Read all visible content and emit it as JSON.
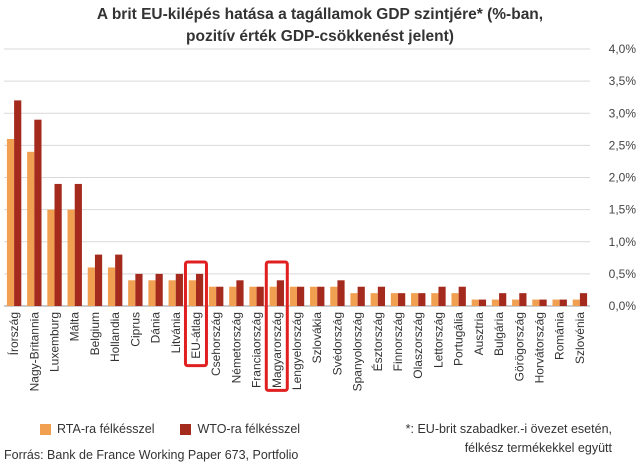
{
  "chart_data": {
    "type": "bar",
    "title_line1": "A brit EU-kilépés hatása a tagállamok GDP szintjére* (%-ban,",
    "title_line2": "pozitív érték GDP-csökkenést jelent)",
    "categories": [
      "Írország",
      "Nagy-Britannia",
      "Luxemburg",
      "Málta",
      "Belgium",
      "Hollandia",
      "Ciprus",
      "Dánia",
      "Litvánia",
      "EU-átlag",
      "Csehország",
      "Németország",
      "Franciaország",
      "Magyarország",
      "Lengyelország",
      "Szlovákia",
      "Svédország",
      "Spanyolország",
      "Észtország",
      "Finnország",
      "Olaszország",
      "Lettország",
      "Portugália",
      "Ausztria",
      "Bulgária",
      "Görögország",
      "Horvátország",
      "Románia",
      "Szlovénia"
    ],
    "series": [
      {
        "name": "RTA-ra félkésszel",
        "color": "#f0a050",
        "values": [
          2.6,
          2.4,
          1.5,
          1.5,
          0.6,
          0.6,
          0.4,
          0.4,
          0.4,
          0.4,
          0.3,
          0.3,
          0.3,
          0.3,
          0.3,
          0.3,
          0.3,
          0.2,
          0.2,
          0.2,
          0.2,
          0.2,
          0.2,
          0.1,
          0.1,
          0.1,
          0.1,
          0.1,
          0.1
        ]
      },
      {
        "name": "WTO-ra félkésszel",
        "color": "#a52a1e",
        "values": [
          3.2,
          2.9,
          1.9,
          1.9,
          0.8,
          0.8,
          0.5,
          0.5,
          0.5,
          0.5,
          0.3,
          0.4,
          0.3,
          0.4,
          0.3,
          0.3,
          0.4,
          0.3,
          0.3,
          0.2,
          0.2,
          0.3,
          0.3,
          0.1,
          0.2,
          0.2,
          0.1,
          0.1,
          0.2
        ]
      }
    ],
    "y_ticks": [
      "0,0%",
      "0,5%",
      "1,0%",
      "1,5%",
      "2,0%",
      "2,5%",
      "3,0%",
      "3,5%",
      "4,0%"
    ],
    "ylim": [
      0,
      4.0
    ],
    "y_axis_side": "right",
    "grid": true,
    "legend_position": "bottom-left",
    "highlighted": [
      "EU-átlag",
      "Magyarország"
    ],
    "highlight_color": "#e02020"
  },
  "footnote_line1": "*: EU-brit szabadker.-i övezet esetén,",
  "footnote_line2": "félkész termékekkel együtt",
  "source": "Forrás: Bank de France Working Paper 673, Portfolio"
}
